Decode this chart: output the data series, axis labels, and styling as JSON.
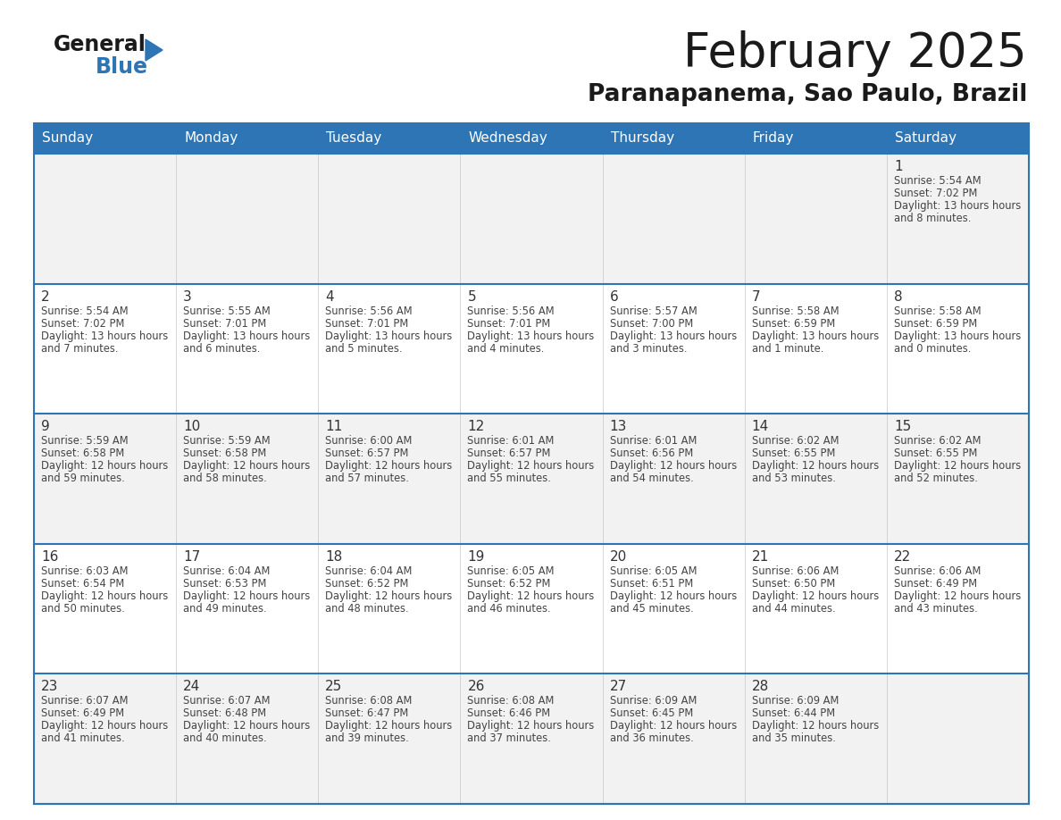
{
  "title": "February 2025",
  "subtitle": "Paranapanema, Sao Paulo, Brazil",
  "header_bg": "#2E75B6",
  "header_text": "#FFFFFF",
  "days_of_week": [
    "Sunday",
    "Monday",
    "Tuesday",
    "Wednesday",
    "Thursday",
    "Friday",
    "Saturday"
  ],
  "cell_bg_light": "#F2F2F2",
  "cell_bg_white": "#FFFFFF",
  "separator_color": "#2E75B6",
  "day_num_color": "#333333",
  "cell_text_color": "#444444",
  "calendar": [
    [
      null,
      null,
      null,
      null,
      null,
      null,
      {
        "day": 1,
        "sunrise": "5:54 AM",
        "sunset": "7:02 PM",
        "daylight": "13 hours and 8 minutes"
      }
    ],
    [
      {
        "day": 2,
        "sunrise": "5:54 AM",
        "sunset": "7:02 PM",
        "daylight": "13 hours and 7 minutes"
      },
      {
        "day": 3,
        "sunrise": "5:55 AM",
        "sunset": "7:01 PM",
        "daylight": "13 hours and 6 minutes"
      },
      {
        "day": 4,
        "sunrise": "5:56 AM",
        "sunset": "7:01 PM",
        "daylight": "13 hours and 5 minutes"
      },
      {
        "day": 5,
        "sunrise": "5:56 AM",
        "sunset": "7:01 PM",
        "daylight": "13 hours and 4 minutes"
      },
      {
        "day": 6,
        "sunrise": "5:57 AM",
        "sunset": "7:00 PM",
        "daylight": "13 hours and 3 minutes"
      },
      {
        "day": 7,
        "sunrise": "5:58 AM",
        "sunset": "6:59 PM",
        "daylight": "13 hours and 1 minute"
      },
      {
        "day": 8,
        "sunrise": "5:58 AM",
        "sunset": "6:59 PM",
        "daylight": "13 hours and 0 minutes"
      }
    ],
    [
      {
        "day": 9,
        "sunrise": "5:59 AM",
        "sunset": "6:58 PM",
        "daylight": "12 hours and 59 minutes"
      },
      {
        "day": 10,
        "sunrise": "5:59 AM",
        "sunset": "6:58 PM",
        "daylight": "12 hours and 58 minutes"
      },
      {
        "day": 11,
        "sunrise": "6:00 AM",
        "sunset": "6:57 PM",
        "daylight": "12 hours and 57 minutes"
      },
      {
        "day": 12,
        "sunrise": "6:01 AM",
        "sunset": "6:57 PM",
        "daylight": "12 hours and 55 minutes"
      },
      {
        "day": 13,
        "sunrise": "6:01 AM",
        "sunset": "6:56 PM",
        "daylight": "12 hours and 54 minutes"
      },
      {
        "day": 14,
        "sunrise": "6:02 AM",
        "sunset": "6:55 PM",
        "daylight": "12 hours and 53 minutes"
      },
      {
        "day": 15,
        "sunrise": "6:02 AM",
        "sunset": "6:55 PM",
        "daylight": "12 hours and 52 minutes"
      }
    ],
    [
      {
        "day": 16,
        "sunrise": "6:03 AM",
        "sunset": "6:54 PM",
        "daylight": "12 hours and 50 minutes"
      },
      {
        "day": 17,
        "sunrise": "6:04 AM",
        "sunset": "6:53 PM",
        "daylight": "12 hours and 49 minutes"
      },
      {
        "day": 18,
        "sunrise": "6:04 AM",
        "sunset": "6:52 PM",
        "daylight": "12 hours and 48 minutes"
      },
      {
        "day": 19,
        "sunrise": "6:05 AM",
        "sunset": "6:52 PM",
        "daylight": "12 hours and 46 minutes"
      },
      {
        "day": 20,
        "sunrise": "6:05 AM",
        "sunset": "6:51 PM",
        "daylight": "12 hours and 45 minutes"
      },
      {
        "day": 21,
        "sunrise": "6:06 AM",
        "sunset": "6:50 PM",
        "daylight": "12 hours and 44 minutes"
      },
      {
        "day": 22,
        "sunrise": "6:06 AM",
        "sunset": "6:49 PM",
        "daylight": "12 hours and 43 minutes"
      }
    ],
    [
      {
        "day": 23,
        "sunrise": "6:07 AM",
        "sunset": "6:49 PM",
        "daylight": "12 hours and 41 minutes"
      },
      {
        "day": 24,
        "sunrise": "6:07 AM",
        "sunset": "6:48 PM",
        "daylight": "12 hours and 40 minutes"
      },
      {
        "day": 25,
        "sunrise": "6:08 AM",
        "sunset": "6:47 PM",
        "daylight": "12 hours and 39 minutes"
      },
      {
        "day": 26,
        "sunrise": "6:08 AM",
        "sunset": "6:46 PM",
        "daylight": "12 hours and 37 minutes"
      },
      {
        "day": 27,
        "sunrise": "6:09 AM",
        "sunset": "6:45 PM",
        "daylight": "12 hours and 36 minutes"
      },
      {
        "day": 28,
        "sunrise": "6:09 AM",
        "sunset": "6:44 PM",
        "daylight": "12 hours and 35 minutes"
      },
      null
    ]
  ],
  "logo_general_color": "#1a1a1a",
  "logo_blue_color": "#2E75B6"
}
